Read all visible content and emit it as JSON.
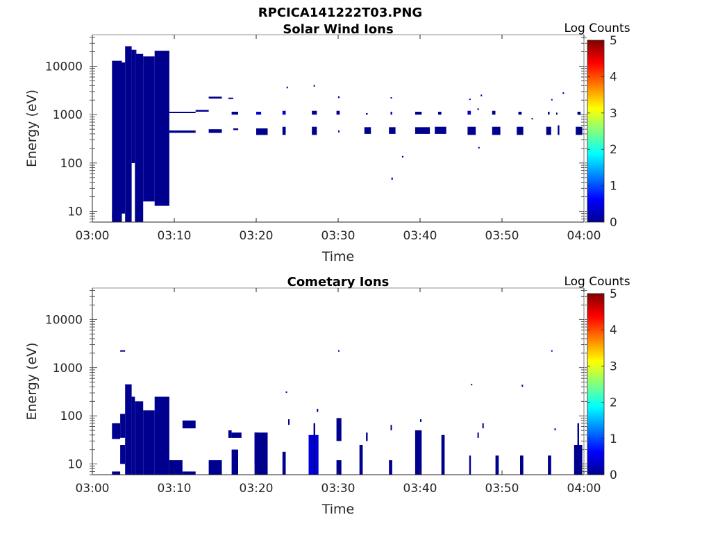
{
  "figure": {
    "title": "RPCICA141222T03.PNG"
  },
  "colors": {
    "data": "#00008f",
    "data_bright": "#0000d8",
    "colormap": [
      "#00008f",
      "#0000ff",
      "#0080ff",
      "#00ffff",
      "#80ff80",
      "#ffff00",
      "#ff8000",
      "#ff0000",
      "#800000"
    ]
  },
  "chart_data": [
    {
      "type": "heatmap",
      "title": "Solar Wind Ions",
      "xlabel": "Time",
      "ylabel": "Energy (eV)",
      "x_ticks": [
        "03:00",
        "03:10",
        "03:20",
        "03:30",
        "03:40",
        "03:50",
        "04:00"
      ],
      "y_ticks": [
        "10",
        "100",
        "1000",
        "10000"
      ],
      "y_scale": "log",
      "y_range": [
        6,
        45000
      ],
      "x_range_minutes": [
        0,
        60
      ],
      "colorbar": {
        "label": "Log Counts",
        "ticks": [
          "0",
          "1",
          "2",
          "3",
          "4",
          "5"
        ],
        "range": [
          0,
          5
        ]
      },
      "cells": [
        [
          2.4,
          3.6,
          7,
          13000,
          0.3
        ],
        [
          2.4,
          3.6,
          6,
          10,
          0.3
        ],
        [
          3.6,
          4.0,
          9,
          12000,
          0.3
        ],
        [
          4.0,
          4.8,
          6,
          26000,
          0.3
        ],
        [
          4.8,
          5.2,
          100,
          22000,
          0.3
        ],
        [
          5.2,
          5.2,
          6,
          22000,
          0.3
        ],
        [
          5.2,
          6.2,
          6,
          18000,
          0.3
        ],
        [
          6.2,
          7.6,
          16,
          16000,
          0.3
        ],
        [
          7.6,
          9.4,
          13,
          21000,
          0.3
        ],
        [
          9.4,
          12.6,
          420,
          470,
          0.3
        ],
        [
          9.4,
          12.6,
          1080,
          1150,
          0.3
        ],
        [
          12.6,
          14.2,
          1150,
          1250,
          0.3
        ],
        [
          14.2,
          15.8,
          420,
          500,
          0.3
        ],
        [
          14.2,
          15.8,
          2150,
          2350,
          0.3
        ],
        [
          16.6,
          17.2,
          2150,
          2250,
          0.3
        ],
        [
          17.0,
          17.8,
          1000,
          1150,
          0.3
        ],
        [
          17.2,
          17.8,
          480,
          520,
          0.3
        ],
        [
          20.0,
          20.6,
          1000,
          1150,
          0.4
        ],
        [
          20.0,
          21.4,
          380,
          520,
          0.3
        ],
        [
          23.2,
          23.6,
          1000,
          1200,
          0.4
        ],
        [
          23.2,
          23.6,
          380,
          560,
          0.3
        ],
        [
          23.7,
          23.8,
          3500,
          3800,
          0.3
        ],
        [
          26.8,
          27.4,
          1000,
          1200,
          0.3
        ],
        [
          26.8,
          27.4,
          380,
          560,
          0.3
        ],
        [
          27.0,
          27.1,
          3800,
          4100,
          0.3
        ],
        [
          29.8,
          30.2,
          1000,
          1200,
          0.3
        ],
        [
          30.0,
          30.1,
          2200,
          2400,
          0.3
        ],
        [
          30.0,
          30.1,
          430,
          470,
          0.3
        ],
        [
          33.4,
          33.6,
          1000,
          1080,
          0.3
        ],
        [
          33.2,
          34.0,
          400,
          550,
          0.3
        ],
        [
          36.4,
          36.6,
          1000,
          1150,
          0.4
        ],
        [
          36.2,
          37.0,
          400,
          550,
          0.3
        ],
        [
          36.4,
          36.5,
          2200,
          2300,
          0.3
        ],
        [
          36.5,
          36.6,
          45,
          50,
          0.3
        ],
        [
          37.8,
          37.9,
          130,
          140,
          0.3
        ],
        [
          39.4,
          40.2,
          1000,
          1150,
          0.3
        ],
        [
          39.4,
          41.2,
          400,
          550,
          0.3
        ],
        [
          42.2,
          42.6,
          1000,
          1150,
          0.3
        ],
        [
          41.8,
          43.2,
          400,
          560,
          0.3
        ],
        [
          45.8,
          46.2,
          1000,
          1200,
          0.4
        ],
        [
          45.8,
          46.8,
          380,
          560,
          0.3
        ],
        [
          46.0,
          46.1,
          2000,
          2150,
          0.3
        ],
        [
          47.0,
          47.1,
          1250,
          1350,
          0.3
        ],
        [
          47.4,
          47.5,
          2400,
          2600,
          0.3
        ],
        [
          47.1,
          47.2,
          200,
          215,
          0.3
        ],
        [
          48.8,
          49.2,
          1000,
          1200,
          0.3
        ],
        [
          48.8,
          49.8,
          380,
          560,
          0.3
        ],
        [
          52.0,
          52.4,
          1000,
          1150,
          0.3
        ],
        [
          51.8,
          52.6,
          380,
          560,
          0.3
        ],
        [
          53.6,
          53.7,
          800,
          850,
          0.3
        ],
        [
          55.6,
          55.8,
          1000,
          1150,
          0.3
        ],
        [
          55.4,
          56.0,
          380,
          560,
          0.3
        ],
        [
          56.0,
          56.1,
          2000,
          2100,
          0.3
        ],
        [
          56.6,
          56.7,
          1000,
          1100,
          0.3
        ],
        [
          56.8,
          57.0,
          380,
          600,
          0.3
        ],
        [
          57.4,
          57.5,
          2700,
          2900,
          0.3
        ],
        [
          59.2,
          59.6,
          1000,
          1150,
          0.3
        ],
        [
          59.0,
          59.8,
          380,
          560,
          0.3
        ]
      ]
    },
    {
      "type": "heatmap",
      "title": "Cometary Ions",
      "xlabel": "Time",
      "ylabel": "Energy (eV)",
      "x_ticks": [
        "03:00",
        "03:10",
        "03:20",
        "03:30",
        "03:40",
        "03:50",
        "04:00"
      ],
      "y_ticks": [
        "10",
        "100",
        "1000",
        "10000"
      ],
      "y_scale": "log",
      "y_range": [
        6,
        45000
      ],
      "x_range_minutes": [
        0,
        60
      ],
      "colorbar": {
        "label": "Log Counts",
        "ticks": [
          "0",
          "1",
          "2",
          "3",
          "4",
          "5"
        ],
        "range": [
          0,
          5
        ]
      },
      "cells": [
        [
          2.4,
          3.4,
          6,
          7,
          0.3
        ],
        [
          2.4,
          3.4,
          33,
          70,
          0.3
        ],
        [
          3.4,
          4.0,
          35,
          110,
          0.3
        ],
        [
          3.4,
          4.0,
          2150,
          2300,
          0.3
        ],
        [
          3.4,
          4.0,
          10,
          25,
          0.3
        ],
        [
          4.0,
          4.8,
          6,
          450,
          0.3
        ],
        [
          4.8,
          5.2,
          6,
          250,
          0.3
        ],
        [
          5.2,
          6.2,
          6,
          200,
          0.3
        ],
        [
          6.2,
          7.6,
          6,
          130,
          0.3
        ],
        [
          7.6,
          9.4,
          6,
          250,
          0.3
        ],
        [
          9.4,
          11.0,
          6,
          12,
          0.3
        ],
        [
          11.0,
          12.6,
          6,
          7,
          0.3
        ],
        [
          11.0,
          12.6,
          55,
          80,
          0.3
        ],
        [
          14.2,
          15.8,
          6,
          12,
          0.3
        ],
        [
          16.6,
          17.0,
          35,
          50,
          0.3
        ],
        [
          17.0,
          17.8,
          6,
          20,
          0.3
        ],
        [
          17.0,
          18.2,
          35,
          45,
          0.3
        ],
        [
          19.8,
          21.4,
          6,
          45,
          0.3
        ],
        [
          19.8,
          20.2,
          10,
          45,
          0.3
        ],
        [
          23.2,
          23.6,
          6,
          18,
          0.3
        ],
        [
          23.6,
          23.7,
          300,
          320,
          0.3
        ],
        [
          23.9,
          24.0,
          65,
          85,
          0.3
        ],
        [
          26.4,
          27.6,
          6,
          40,
          0.4
        ],
        [
          27.0,
          27.2,
          6,
          70,
          0.3
        ],
        [
          27.4,
          27.5,
          120,
          140,
          0.3
        ],
        [
          29.8,
          30.4,
          6,
          12,
          0.3
        ],
        [
          29.8,
          30.4,
          30,
          90,
          0.3
        ],
        [
          30.0,
          30.1,
          2150,
          2300,
          0.3
        ],
        [
          32.6,
          33.0,
          6,
          25,
          0.3
        ],
        [
          33.4,
          33.6,
          30,
          45,
          0.3
        ],
        [
          36.2,
          36.6,
          6,
          12,
          0.3
        ],
        [
          36.4,
          36.5,
          50,
          65,
          0.3
        ],
        [
          39.4,
          40.2,
          6,
          50,
          0.3
        ],
        [
          40.0,
          40.1,
          75,
          85,
          0.3
        ],
        [
          42.6,
          43.0,
          6,
          40,
          0.3
        ],
        [
          46.0,
          46.2,
          6,
          15,
          0.3
        ],
        [
          46.2,
          46.3,
          430,
          460,
          0.3
        ],
        [
          47.0,
          47.1,
          35,
          45,
          0.3
        ],
        [
          47.6,
          47.7,
          55,
          70,
          0.3
        ],
        [
          49.2,
          49.6,
          6,
          15,
          0.3
        ],
        [
          52.2,
          52.6,
          6,
          15,
          0.3
        ],
        [
          52.4,
          52.5,
          400,
          440,
          0.3
        ],
        [
          55.6,
          56.0,
          6,
          15,
          0.3
        ],
        [
          56.0,
          56.1,
          2150,
          2300,
          0.3
        ],
        [
          56.4,
          56.5,
          50,
          55,
          0.3
        ],
        [
          58.8,
          59.8,
          6,
          25,
          0.3
        ],
        [
          59.2,
          59.4,
          6,
          70,
          0.3
        ]
      ]
    }
  ]
}
